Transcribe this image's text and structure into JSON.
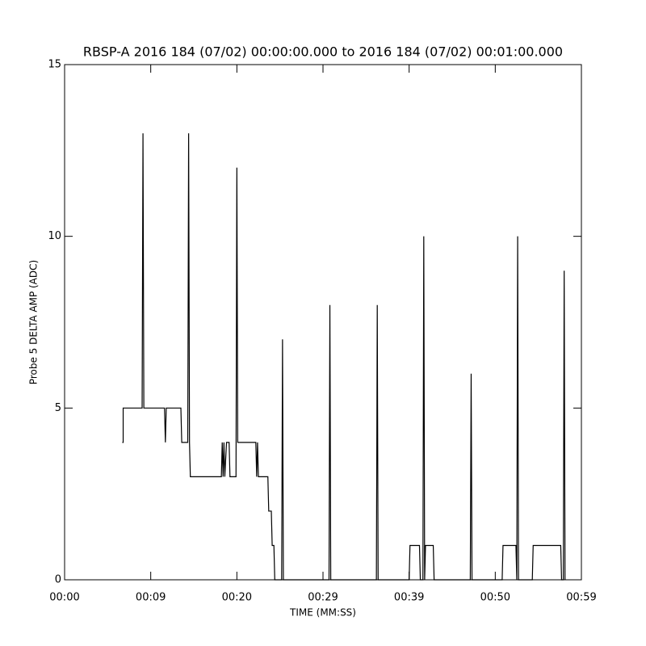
{
  "chart_data": {
    "type": "line",
    "title": "RBSP-A 2016 184 (07/02) 00:00:00.000 to 2016 184 (07/02) 00:01:00.000",
    "x_label": "TIME (MM:SS)",
    "y_label": "Probe 5 DELTA AMP (ADC)",
    "xlim": [
      0,
      60
    ],
    "xticks": [
      {
        "value": 0,
        "label": "00:00"
      },
      {
        "value": 10,
        "label": "00:09"
      },
      {
        "value": 20,
        "label": "00:20"
      },
      {
        "value": 30,
        "label": "00:29"
      },
      {
        "value": 40,
        "label": "00:39"
      },
      {
        "value": 50,
        "label": "00:50"
      },
      {
        "value": 60,
        "label": "00:59"
      }
    ],
    "ylim": [
      0,
      15
    ],
    "yticks": [
      0,
      5,
      10,
      15
    ],
    "series": [
      {
        "color": "#000000",
        "x": [
          6.7,
          6.8,
          6.8,
          9.0,
          9.1,
          9.2,
          11.6,
          11.7,
          11.8,
          13.5,
          13.6,
          14.3,
          14.4,
          14.5,
          14.6,
          18.2,
          18.3,
          18.4,
          18.5,
          18.6,
          18.8,
          19.1,
          19.2,
          19.9,
          20.0,
          20.1,
          22.2,
          22.3,
          22.4,
          22.5,
          23.6,
          23.7,
          24.0,
          24.1,
          24.3,
          24.4,
          25.2,
          25.3,
          25.4,
          30.7,
          30.8,
          30.9,
          36.2,
          36.3,
          36.4,
          40.0,
          40.1,
          41.2,
          41.3,
          41.6,
          41.7,
          41.8,
          41.9,
          42.8,
          42.9,
          47.1,
          47.2,
          47.3,
          50.8,
          50.9,
          52.4,
          52.5,
          52.6,
          52.7,
          54.3,
          54.4,
          57.6,
          57.7,
          57.9,
          58.0,
          58.1
        ],
        "values": [
          4,
          4,
          5,
          5,
          13,
          5,
          5,
          4,
          5,
          5,
          4,
          4,
          13,
          4,
          3,
          3,
          4,
          3,
          4,
          3,
          4,
          4,
          3,
          3,
          12,
          4,
          4,
          3,
          4,
          3,
          3,
          2,
          2,
          1,
          1,
          0,
          0,
          7,
          0,
          0,
          8,
          0,
          0,
          8,
          0,
          0,
          1,
          1,
          0,
          0,
          10,
          0,
          1,
          1,
          0,
          0,
          6,
          0,
          0,
          1,
          1,
          0,
          10,
          0,
          0,
          1,
          1,
          0,
          0,
          9,
          0
        ]
      }
    ]
  }
}
